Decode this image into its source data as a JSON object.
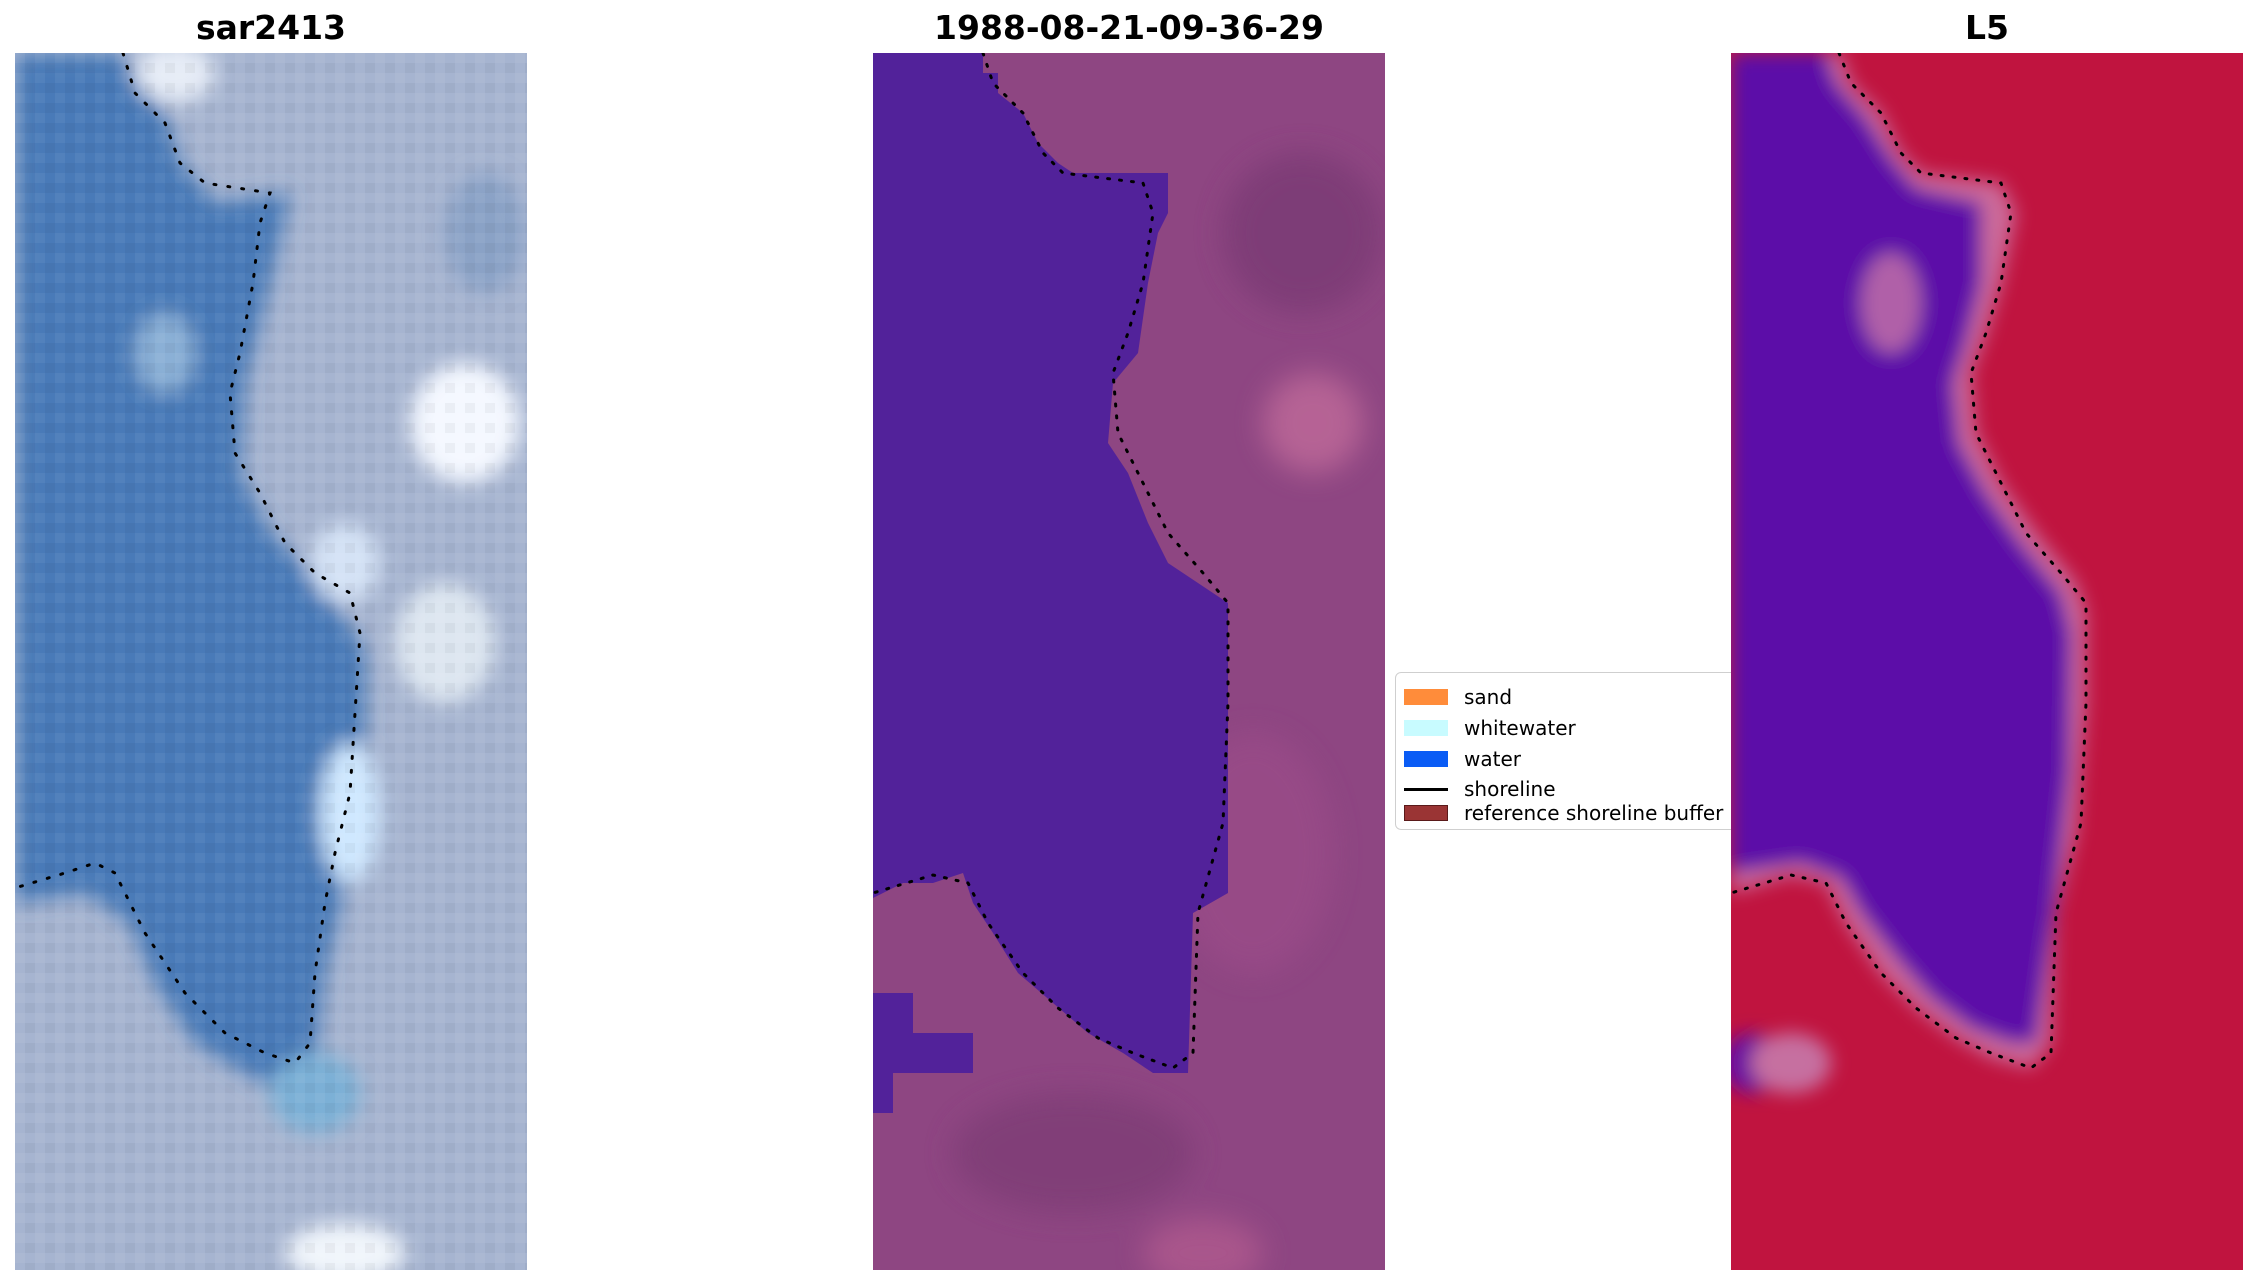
{
  "panels": [
    {
      "title": "sar2413",
      "image": "satellite-rgb-composite",
      "palette": {
        "water": "#4a7ab8",
        "land": "#a6b4d0",
        "bright": "#f4f8ff"
      }
    },
    {
      "title": "1988-08-21-09-36-29",
      "image": "classified-overlay",
      "palette": {
        "water": "#52229a",
        "land": "#8e4682"
      }
    },
    {
      "title": "L5",
      "image": "index-map",
      "palette": {
        "water": "#5c0aa8",
        "land": "#c0143f"
      }
    }
  ],
  "legend": {
    "items": [
      {
        "label": "sand",
        "color": "#ff8c3a",
        "kind": "patch"
      },
      {
        "label": "whitewater",
        "color": "#c8fbff",
        "kind": "patch"
      },
      {
        "label": "water",
        "color": "#0a5cf5",
        "kind": "patch"
      },
      {
        "label": "shoreline",
        "color": "#000000",
        "kind": "line"
      },
      {
        "label": "reference shoreline buffer",
        "color": "#9a3434",
        "kind": "patch"
      }
    ]
  }
}
